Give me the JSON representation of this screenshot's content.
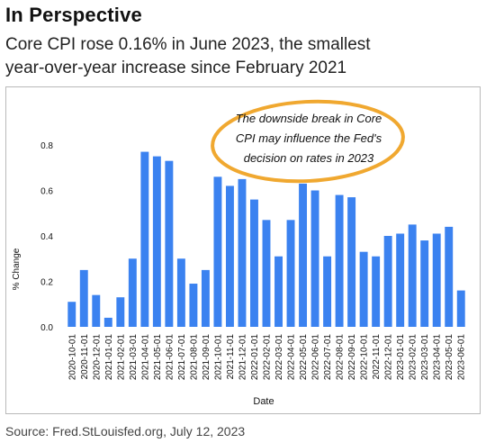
{
  "header": {
    "title": "In Perspective",
    "subtitle_line1": "Core CPI rose 0.16% in June 2023, the smallest",
    "subtitle_line2": "year-over-year increase since February 2021"
  },
  "annotation": {
    "line1": "The downside break in Core",
    "line2": "CPI may influence the Fed's",
    "line3": "decision on rates in 2023",
    "ring_color": "#f0a830"
  },
  "footer": {
    "source": "Source: Fred.StLouisfed.org, July 12, 2023"
  },
  "chart_data": {
    "type": "bar",
    "xlabel": "Date",
    "ylabel": "% Change",
    "ylim": [
      0,
      0.8
    ],
    "yticks": [
      "0.0",
      "0.2",
      "0.4",
      "0.6",
      "0.8"
    ],
    "bar_color": "#3b82f0",
    "grid": false,
    "categories": [
      "2020-10-01",
      "2020-11-01",
      "2020-12-01",
      "2021-01-01",
      "2021-02-01",
      "2021-03-01",
      "2021-04-01",
      "2021-05-01",
      "2021-06-01",
      "2021-07-01",
      "2021-08-01",
      "2021-09-01",
      "2021-10-01",
      "2021-11-01",
      "2021-12-01",
      "2022-01-01",
      "2022-02-01",
      "2022-03-01",
      "2022-04-01",
      "2022-05-01",
      "2022-06-01",
      "2022-07-01",
      "2022-08-01",
      "2022-09-01",
      "2022-10-01",
      "2022-11-01",
      "2022-12-01",
      "2023-01-01",
      "2023-02-01",
      "2023-03-01",
      "2023-04-01",
      "2023-05-01",
      "2023-06-01"
    ],
    "values": [
      0.11,
      0.25,
      0.14,
      0.04,
      0.13,
      0.3,
      0.77,
      0.75,
      0.73,
      0.3,
      0.19,
      0.25,
      0.66,
      0.62,
      0.65,
      0.56,
      0.47,
      0.31,
      0.47,
      0.63,
      0.6,
      0.31,
      0.58,
      0.57,
      0.33,
      0.31,
      0.4,
      0.41,
      0.45,
      0.38,
      0.41,
      0.44,
      0.16
    ]
  }
}
